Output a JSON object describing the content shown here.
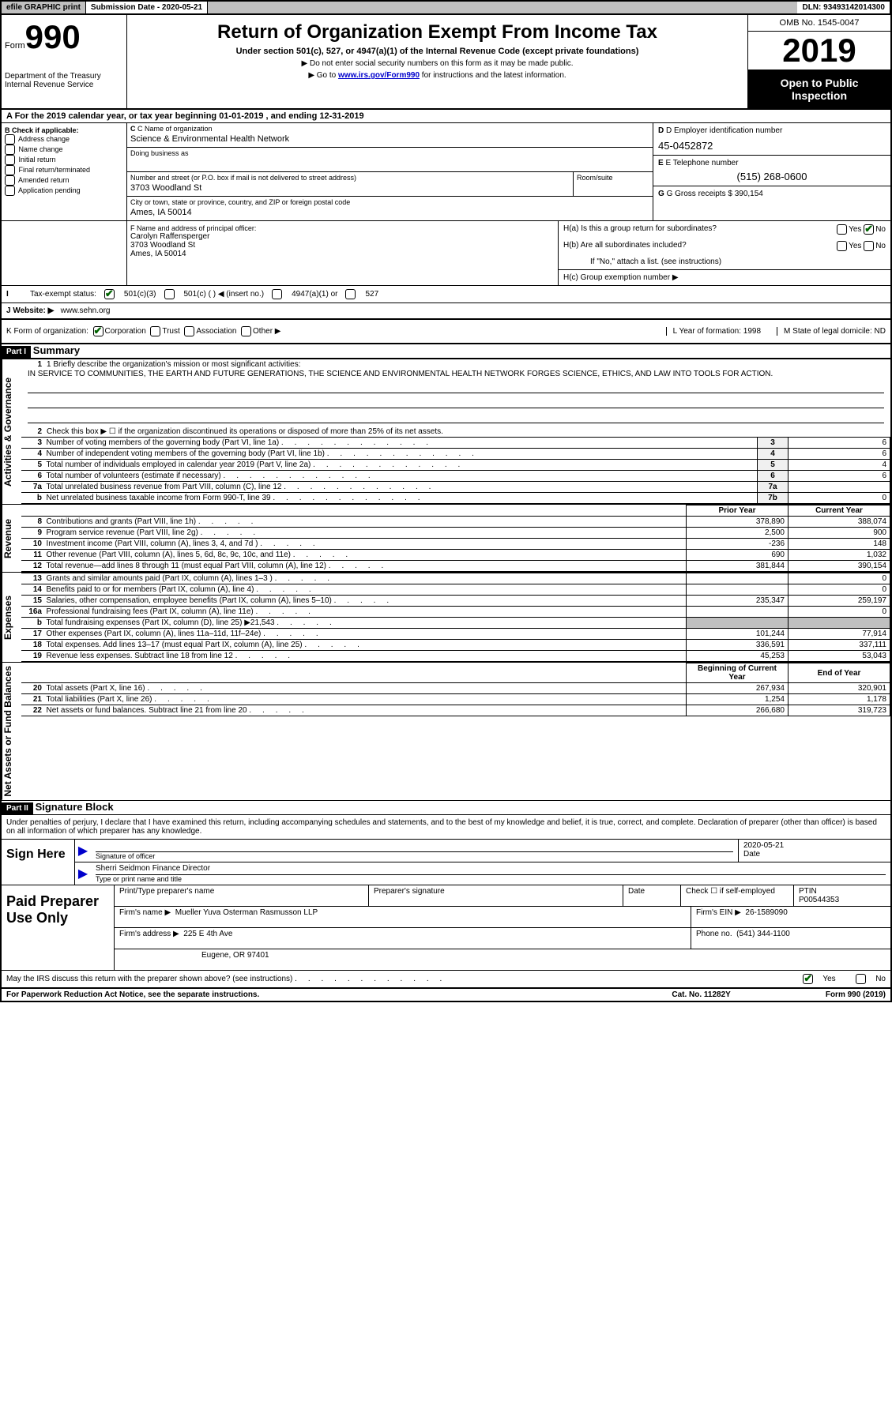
{
  "colors": {
    "topbar_bg": "#c0c0c0",
    "check_green": "#006400",
    "link_blue": "#0000cc",
    "black": "#000000",
    "white": "#ffffff",
    "grey_cell": "#c0c0c0",
    "box_bg": "#f0f0f0"
  },
  "topbar": {
    "efile": "efile GRAPHIC print",
    "sub_label": "Submission Date - 2020-05-21",
    "dln": "DLN: 93493142014300"
  },
  "header": {
    "form_word": "Form",
    "form_num": "990",
    "dept": "Department of the Treasury",
    "irs": "Internal Revenue Service",
    "title": "Return of Organization Exempt From Income Tax",
    "subtitle": "Under section 501(c), 527, or 4947(a)(1) of the Internal Revenue Code (except private foundations)",
    "instr1": "▶ Do not enter social security numbers on this form as it may be made public.",
    "instr2_pre": "▶ Go to ",
    "instr2_link": "www.irs.gov/Form990",
    "instr2_post": " for instructions and the latest information.",
    "omb": "OMB No. 1545-0047",
    "year": "2019",
    "open": "Open to Public Inspection"
  },
  "period": {
    "text": "A For the 2019 calendar year, or tax year beginning 01-01-2019    , and ending 12-31-2019"
  },
  "sectionB": {
    "title": "B Check if applicable:",
    "opts": [
      "Address change",
      "Name change",
      "Initial return",
      "Final return/terminated",
      "Amended return",
      "Application pending"
    ]
  },
  "sectionC": {
    "name_label": "C Name of organization",
    "name": "Science & Environmental Health Network",
    "dba_label": "Doing business as",
    "addr_label": "Number and street (or P.O. box if mail is not delivered to street address)",
    "room_label": "Room/suite",
    "addr": "3703 Woodland St",
    "city_label": "City or town, state or province, country, and ZIP or foreign postal code",
    "city": "Ames, IA  50014"
  },
  "sectionD": {
    "label": "D Employer identification number",
    "val": "45-0452872"
  },
  "sectionE": {
    "label": "E Telephone number",
    "val": "(515) 268-0600"
  },
  "sectionG": {
    "label": "G Gross receipts $",
    "val": "390,154"
  },
  "sectionF": {
    "label": "F  Name and address of principal officer:",
    "name": "Carolyn Raffensperger",
    "addr1": "3703 Woodland St",
    "addr2": "Ames, IA  50014"
  },
  "sectionH": {
    "ha": "H(a)  Is this a group return for subordinates?",
    "hb": "H(b)  Are all subordinates included?",
    "hb_note": "If \"No,\" attach a list. (see instructions)",
    "hc": "H(c)  Group exemption number ▶"
  },
  "taxStatus": {
    "label": "Tax-exempt status:",
    "c3": "501(c)(3)",
    "c": "501(c) (   ) ◀ (insert no.)",
    "a4947": "4947(a)(1) or",
    "s527": "527"
  },
  "website": {
    "label": "J     Website: ▶",
    "val": "www.sehn.org"
  },
  "korg": {
    "label": "K Form of organization:",
    "corp": "Corporation",
    "trust": "Trust",
    "assoc": "Association",
    "other": "Other ▶",
    "l": "L Year of formation: 1998",
    "m": "M State of legal domicile: ND"
  },
  "part1": {
    "hdr": "Part I",
    "title": "Summary",
    "vtab1": "Activities & Governance",
    "vtab2": "Revenue",
    "vtab3": "Expenses",
    "vtab4": "Net Assets or Fund Balances",
    "line1_label": "1  Briefly describe the organization's mission or most significant activities:",
    "mission": "IN SERVICE TO COMMUNITIES, THE EARTH AND FUTURE GENERATIONS, THE SCIENCE AND ENVIRONMENTAL HEALTH NETWORK FORGES SCIENCE, ETHICS, AND LAW INTO TOOLS FOR ACTION.",
    "line2": "Check this box ▶ ☐  if the organization discontinued its operations or disposed of more than 25% of its net assets.",
    "rows_gov": [
      {
        "n": "3",
        "t": "Number of voting members of the governing body (Part VI, line 1a)",
        "box": "3",
        "v": "6"
      },
      {
        "n": "4",
        "t": "Number of independent voting members of the governing body (Part VI, line 1b)",
        "box": "4",
        "v": "6"
      },
      {
        "n": "5",
        "t": "Total number of individuals employed in calendar year 2019 (Part V, line 2a)",
        "box": "5",
        "v": "4"
      },
      {
        "n": "6",
        "t": "Total number of volunteers (estimate if necessary)",
        "box": "6",
        "v": "6"
      },
      {
        "n": "7a",
        "t": "Total unrelated business revenue from Part VIII, column (C), line 12",
        "box": "7a",
        "v": ""
      },
      {
        "n": "b",
        "t": "Net unrelated business taxable income from Form 990-T, line 39",
        "box": "7b",
        "v": "0"
      }
    ],
    "col_prior": "Prior Year",
    "col_curr": "Current Year",
    "rows_rev": [
      {
        "n": "8",
        "t": "Contributions and grants (Part VIII, line 1h)",
        "p": "378,890",
        "c": "388,074"
      },
      {
        "n": "9",
        "t": "Program service revenue (Part VIII, line 2g)",
        "p": "2,500",
        "c": "900"
      },
      {
        "n": "10",
        "t": "Investment income (Part VIII, column (A), lines 3, 4, and 7d )",
        "p": "-236",
        "c": "148"
      },
      {
        "n": "11",
        "t": "Other revenue (Part VIII, column (A), lines 5, 6d, 8c, 9c, 10c, and 11e)",
        "p": "690",
        "c": "1,032"
      },
      {
        "n": "12",
        "t": "Total revenue—add lines 8 through 11 (must equal Part VIII, column (A), line 12)",
        "p": "381,844",
        "c": "390,154"
      }
    ],
    "rows_exp": [
      {
        "n": "13",
        "t": "Grants and similar amounts paid (Part IX, column (A), lines 1–3 )",
        "p": "",
        "c": "0"
      },
      {
        "n": "14",
        "t": "Benefits paid to or for members (Part IX, column (A), line 4)",
        "p": "",
        "c": "0"
      },
      {
        "n": "15",
        "t": "Salaries, other compensation, employee benefits (Part IX, column (A), lines 5–10)",
        "p": "235,347",
        "c": "259,197"
      },
      {
        "n": "16a",
        "t": "Professional fundraising fees (Part IX, column (A), line 11e)",
        "p": "",
        "c": "0"
      },
      {
        "n": "b",
        "t": "Total fundraising expenses (Part IX, column (D), line 25) ▶21,543",
        "p": "GREY",
        "c": "GREY"
      },
      {
        "n": "17",
        "t": "Other expenses (Part IX, column (A), lines 11a–11d, 11f–24e)",
        "p": "101,244",
        "c": "77,914"
      },
      {
        "n": "18",
        "t": "Total expenses. Add lines 13–17 (must equal Part IX, column (A), line 25)",
        "p": "336,591",
        "c": "337,111"
      },
      {
        "n": "19",
        "t": "Revenue less expenses. Subtract line 18 from line 12",
        "p": "45,253",
        "c": "53,043"
      }
    ],
    "col_boy": "Beginning of Current Year",
    "col_eoy": "End of Year",
    "rows_net": [
      {
        "n": "20",
        "t": "Total assets (Part X, line 16)",
        "p": "267,934",
        "c": "320,901"
      },
      {
        "n": "21",
        "t": "Total liabilities (Part X, line 26)",
        "p": "1,254",
        "c": "1,178"
      },
      {
        "n": "22",
        "t": "Net assets or fund balances. Subtract line 21 from line 20",
        "p": "266,680",
        "c": "319,723"
      }
    ]
  },
  "part2": {
    "hdr": "Part II",
    "title": "Signature Block",
    "intro": "Under penalties of perjury, I declare that I have examined this return, including accompanying schedules and statements, and to the best of my knowledge and belief, it is true, correct, and complete. Declaration of preparer (other than officer) is based on all information of which preparer has any knowledge.",
    "sign_here": "Sign Here",
    "sig_officer": "Signature of officer",
    "sig_date_label": "Date",
    "sig_date": "2020-05-21",
    "officer_name": "Sherri Seidmon Finance Director",
    "officer_sub": "Type or print name and title",
    "paid": "Paid Preparer Use Only",
    "p_name_label": "Print/Type preparer's name",
    "p_sig_label": "Preparer's signature",
    "p_date_label": "Date",
    "p_check": "Check ☐ if self-employed",
    "p_ptin_label": "PTIN",
    "p_ptin": "P00544353",
    "firm_name_label": "Firm's name    ▶",
    "firm_name": "Mueller Yuva Osterman Rasmusson LLP",
    "firm_ein_label": "Firm's EIN ▶",
    "firm_ein": "26-1589090",
    "firm_addr_label": "Firm's address ▶",
    "firm_addr1": "225 E 4th Ave",
    "firm_addr2": "Eugene, OR  97401",
    "phone_label": "Phone no.",
    "phone": "(541) 344-1100",
    "discuss": "May the IRS discuss this return with the preparer shown above? (see instructions)"
  },
  "footer": {
    "left": "For Paperwork Reduction Act Notice, see the separate instructions.",
    "mid": "Cat. No. 11282Y",
    "right": "Form 990 (2019)"
  },
  "yn": {
    "yes": "Yes",
    "no": "No"
  }
}
